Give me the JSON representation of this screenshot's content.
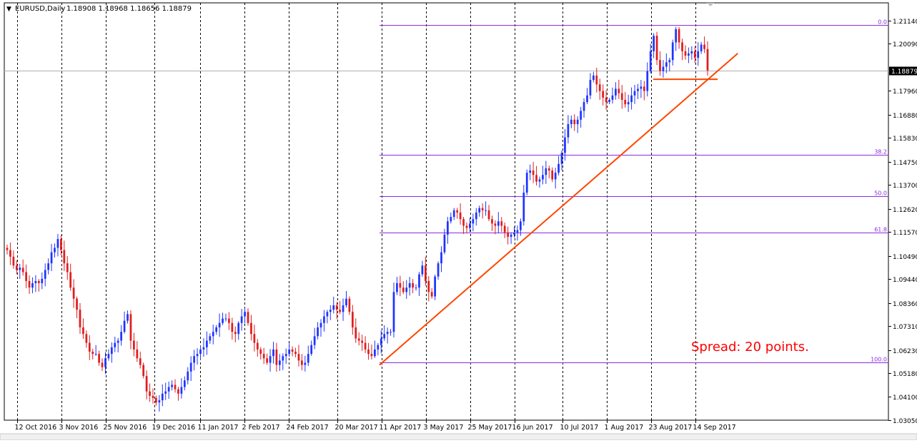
{
  "header": {
    "symbol": "EURUSD,Daily",
    "ohlc": "1.18908 1.18968 1.18656 1.18879"
  },
  "annotation": {
    "spread_text": "Spread: 20 points."
  },
  "colors": {
    "bull": "#1f35ff",
    "bear": "#e01e1e",
    "fib": "#8a2be2",
    "trendline": "#ff4500",
    "grid": "#000000",
    "bid_line": "#b0b0b0",
    "price_label_bg": "#000000",
    "price_label_fg": "#ffffff"
  },
  "chart_data": {
    "type": "candlestick",
    "x_axis": {
      "start_date": "2016-10-07",
      "end_date": "2017-09-20",
      "tick_labels": [
        "12 Oct 2016",
        "3 Nov 2016",
        "25 Nov 2016",
        "19 Dec 2016",
        "11 Jan 2017",
        "2 Feb 2017",
        "24 Feb 2017",
        "20 Mar 2017",
        "11 Apr 2017",
        "3 May 2017",
        "25 May 2017",
        "16 Jun 2017",
        "10 Jul 2017",
        "1 Aug 2017",
        "23 Aug 2017",
        "14 Sep 2017"
      ]
    },
    "y_axis": {
      "range": [
        1.0305,
        1.2194
      ],
      "tick_labels": [
        "1.21140",
        "1.20090",
        "1.18879",
        "1.17960",
        "1.16880",
        "1.15830",
        "1.14750",
        "1.13700",
        "1.12620",
        "1.11570",
        "1.10490",
        "1.09440",
        "1.08360",
        "1.07310",
        "1.06230",
        "1.05180",
        "1.04100",
        "1.03050"
      ],
      "ticks": [
        1.2114,
        1.2009,
        1.1796,
        1.1688,
        1.1583,
        1.1475,
        1.137,
        1.1262,
        1.1157,
        1.1049,
        1.0944,
        1.0836,
        1.0731,
        1.0623,
        1.0518,
        1.041,
        1.0305
      ],
      "current_price": 1.18879
    },
    "series": [
      {
        "closes": [
          1.1075,
          1.1045,
          1.1005,
          1.0985,
          1.0995,
          1.0975,
          1.0935,
          1.0905,
          1.0925,
          1.0935,
          1.0925,
          1.0945,
          1.0985,
          1.1015,
          1.1065,
          1.1085,
          1.1125,
          1.1075,
          1.1015,
          1.0975,
          1.0905,
          1.0855,
          1.0805,
          1.0725,
          1.0695,
          1.0655,
          1.0615,
          1.0605,
          1.0605,
          1.0565,
          1.0545,
          1.0585,
          1.0605,
          1.0635,
          1.0655,
          1.0665,
          1.0705,
          1.0755,
          1.0785,
          1.0665,
          1.0625,
          1.0585,
          1.0555,
          1.0505,
          1.0435,
          1.0415,
          1.0405,
          1.0385,
          1.0395,
          1.0425,
          1.0435,
          1.0455,
          1.0465,
          1.0445,
          1.0425,
          1.0455,
          1.0485,
          1.0525,
          1.0565,
          1.0595,
          1.0605,
          1.0625,
          1.0635,
          1.0665,
          1.0685,
          1.0705,
          1.0725,
          1.0745,
          1.0765,
          1.0765,
          1.0745,
          1.0705,
          1.0695,
          1.0745,
          1.0775,
          1.0795,
          1.0745,
          1.0695,
          1.0655,
          1.0625,
          1.0605,
          1.0585,
          1.0565,
          1.0595,
          1.0625,
          1.0555,
          1.0575,
          1.0595,
          1.0605,
          1.0625,
          1.0615,
          1.0605,
          1.0575,
          1.0555,
          1.0565,
          1.0605,
          1.0645,
          1.0685,
          1.0725,
          1.0745,
          1.0775,
          1.0795,
          1.0805,
          1.0825,
          1.0805,
          1.0795,
          1.0825,
          1.0855,
          1.0795,
          1.0725,
          1.0675,
          1.0665,
          1.0655,
          1.0625,
          1.0605,
          1.0595,
          1.0625,
          1.0645,
          1.0675,
          1.0695,
          1.0705,
          1.0705,
          1.0885,
          1.0925,
          1.0905,
          1.0885,
          1.0905,
          1.0925,
          1.0905,
          1.0905,
          1.0965,
          1.1005,
          1.0935,
          1.0885,
          1.0865,
          1.0955,
          1.1015,
          1.1065,
          1.1145,
          1.1205,
          1.1225,
          1.1255,
          1.1245,
          1.1215,
          1.1185,
          1.1175,
          1.1195,
          1.1215,
          1.1245,
          1.1265,
          1.1255,
          1.1255,
          1.1215,
          1.1195,
          1.1185,
          1.1205,
          1.1185,
          1.1155,
          1.1135,
          1.1145,
          1.1155,
          1.1165,
          1.1205,
          1.1335,
          1.1425,
          1.1435,
          1.1415,
          1.1385,
          1.1395,
          1.1415,
          1.1445,
          1.1435,
          1.1395,
          1.1425,
          1.1465,
          1.1515,
          1.1585,
          1.1645,
          1.1665,
          1.1645,
          1.1665,
          1.1705,
          1.1745,
          1.1775,
          1.1845,
          1.1865,
          1.1825,
          1.1795,
          1.1765,
          1.1745,
          1.1755,
          1.1775,
          1.1805,
          1.1785,
          1.1755,
          1.1735,
          1.1745,
          1.1775,
          1.1795,
          1.1805,
          1.1815,
          1.1795,
          1.1885,
          1.1975,
          1.2045,
          1.1935,
          1.1885,
          1.1905,
          1.1925,
          1.1935,
          1.2015,
          1.2075,
          1.2015,
          1.1975,
          1.1955,
          1.1965,
          1.1975,
          1.1945,
          1.1975,
          1.2005,
          1.1985,
          1.1888
        ]
      }
    ],
    "fibonacci": [
      {
        "label": "0.0",
        "price": 1.2094
      },
      {
        "label": "38.2",
        "price": 1.1505
      },
      {
        "label": "50.0",
        "price": 1.1318
      },
      {
        "label": "61.8",
        "price": 1.1154
      },
      {
        "label": "100.0",
        "price": 1.0568
      }
    ],
    "trendlines": [
      {
        "from": [
          "2017-04-10",
          1.0555
        ],
        "to": [
          "2017-10-05",
          1.1965
        ]
      },
      {
        "from": [
          "2017-08-24",
          1.1848
        ],
        "to": [
          "2017-09-25",
          1.1848
        ]
      }
    ],
    "grid": "vertical dashed"
  }
}
